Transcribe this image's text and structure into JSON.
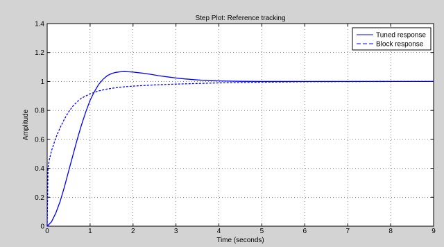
{
  "chart_data": {
    "type": "line",
    "title": "Step Plot: Reference tracking",
    "xlabel": "Time (seconds)",
    "ylabel": "Amplitude",
    "xlim": [
      0,
      9
    ],
    "ylim": [
      0,
      1.4
    ],
    "xticks": [
      0,
      1,
      2,
      3,
      4,
      5,
      6,
      7,
      8,
      9
    ],
    "yticks": [
      0,
      0.2,
      0.4,
      0.6,
      0.8,
      1,
      1.2,
      1.4
    ],
    "grid": true,
    "legend_position": "top-right",
    "series": [
      {
        "name": "Tuned response",
        "style": "solid",
        "color": "#0000ff",
        "x": [
          0,
          0.1,
          0.2,
          0.3,
          0.4,
          0.5,
          0.6,
          0.7,
          0.8,
          0.9,
          1.0,
          1.1,
          1.2,
          1.3,
          1.4,
          1.5,
          1.6,
          1.7,
          1.8,
          1.9,
          2.0,
          2.2,
          2.4,
          2.6,
          2.8,
          3.0,
          3.2,
          3.4,
          3.6,
          3.8,
          4.0,
          4.5,
          5.0,
          6.0,
          7.0,
          8.0,
          9.0
        ],
        "y": [
          0,
          0.03,
          0.09,
          0.17,
          0.27,
          0.38,
          0.49,
          0.6,
          0.7,
          0.79,
          0.87,
          0.93,
          0.98,
          1.015,
          1.04,
          1.055,
          1.063,
          1.067,
          1.068,
          1.067,
          1.065,
          1.058,
          1.05,
          1.04,
          1.032,
          1.024,
          1.018,
          1.013,
          1.009,
          1.006,
          1.004,
          1.001,
          1.0,
          1.0,
          1.0,
          1.0,
          1.0
        ]
      },
      {
        "name": "Block response",
        "style": "dashed",
        "color": "#0000ff",
        "x": [
          0,
          0.02,
          0.05,
          0.1,
          0.2,
          0.3,
          0.4,
          0.5,
          0.6,
          0.7,
          0.8,
          0.9,
          1.0,
          1.2,
          1.4,
          1.6,
          1.8,
          2.0,
          2.5,
          3.0,
          3.5,
          4.0,
          5.0,
          6.0,
          7.0,
          8.0,
          9.0
        ],
        "y": [
          0,
          0.4,
          0.46,
          0.52,
          0.61,
          0.68,
          0.74,
          0.79,
          0.83,
          0.86,
          0.885,
          0.9,
          0.915,
          0.935,
          0.948,
          0.957,
          0.963,
          0.968,
          0.976,
          0.982,
          0.986,
          0.99,
          0.995,
          0.998,
          0.999,
          1.0,
          1.0
        ]
      }
    ]
  }
}
